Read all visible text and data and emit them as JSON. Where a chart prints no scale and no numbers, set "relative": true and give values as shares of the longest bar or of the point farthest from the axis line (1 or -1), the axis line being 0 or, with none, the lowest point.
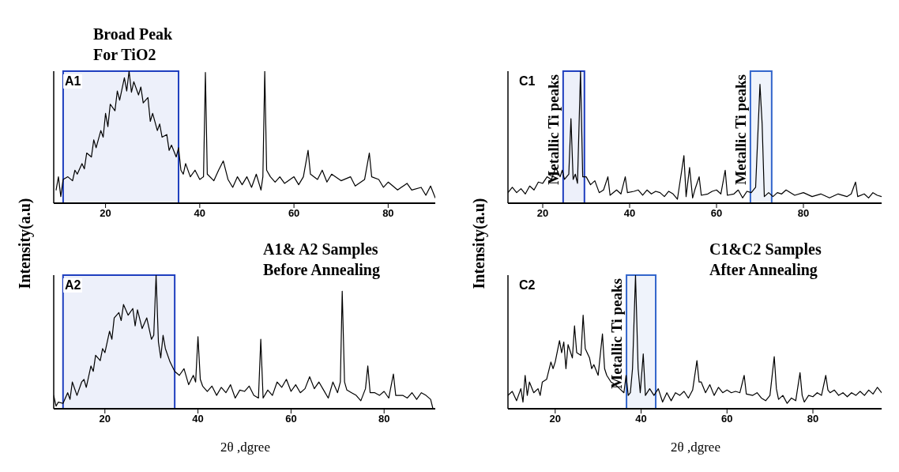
{
  "chart_data": [
    {
      "type": "line",
      "title": "A1",
      "ylabel": "Intensity(a.u)",
      "relative": true,
      "xlim": [
        9,
        90
      ],
      "xticks": [
        20,
        40,
        60,
        80
      ],
      "tick_labels": "x",
      "x": [
        9.5,
        10,
        10.5,
        11,
        12,
        13,
        13.5,
        14,
        15,
        15.5,
        16,
        17,
        17.5,
        18,
        19,
        19.5,
        20,
        20.5,
        21,
        22,
        22.5,
        23,
        24,
        24.5,
        25,
        25.5,
        26,
        27,
        27.5,
        28,
        29,
        29.5,
        30,
        31,
        31.5,
        32,
        33,
        33.5,
        34,
        35,
        35.5,
        36,
        36.5,
        37,
        38,
        39,
        40,
        40.8,
        41.2,
        41.6,
        43,
        44,
        45,
        46,
        47,
        48,
        49,
        50,
        51,
        52,
        53,
        53.4,
        53.8,
        54.2,
        55,
        56,
        57,
        58,
        60,
        61,
        62,
        63,
        63.5,
        65,
        66,
        67,
        68,
        70,
        72,
        73,
        75,
        76,
        76.5,
        78,
        79,
        80,
        82,
        84,
        85,
        87,
        88,
        89,
        90
      ],
      "series": [
        {
          "color": "#000000",
          "values": [
            0.1,
            0.2,
            0.05,
            0.18,
            0.2,
            0.17,
            0.25,
            0.22,
            0.3,
            0.26,
            0.38,
            0.35,
            0.48,
            0.42,
            0.55,
            0.5,
            0.68,
            0.58,
            0.75,
            0.7,
            0.85,
            0.78,
            0.95,
            0.85,
            1.0,
            0.84,
            0.92,
            0.82,
            0.88,
            0.76,
            0.8,
            0.62,
            0.68,
            0.55,
            0.6,
            0.5,
            0.52,
            0.4,
            0.44,
            0.35,
            0.42,
            0.25,
            0.22,
            0.3,
            0.2,
            0.25,
            0.18,
            0.2,
            0.99,
            0.22,
            0.17,
            0.25,
            0.32,
            0.18,
            0.12,
            0.2,
            0.14,
            0.2,
            0.12,
            0.22,
            0.1,
            0.2,
            1.0,
            0.25,
            0.2,
            0.16,
            0.2,
            0.15,
            0.2,
            0.14,
            0.2,
            0.4,
            0.22,
            0.18,
            0.25,
            0.16,
            0.22,
            0.17,
            0.2,
            0.13,
            0.18,
            0.38,
            0.2,
            0.18,
            0.12,
            0.16,
            0.1,
            0.15,
            0.1,
            0.12,
            0.06,
            0.13,
            0.04
          ]
        }
      ],
      "bands": [
        {
          "axis": "x",
          "from": 11,
          "to": 35.5,
          "color": "#1f3fbf"
        }
      ],
      "annotations": [
        "Broad Peak For TiO2"
      ]
    },
    {
      "type": "line",
      "title": "A2",
      "xlabel": "2θ ,dgree",
      "relative": true,
      "xlim": [
        9,
        91
      ],
      "xticks": [
        20,
        40,
        60,
        80
      ],
      "tick_labels": "x",
      "x": [
        9,
        9.5,
        10,
        11,
        12,
        12.5,
        13,
        14,
        15,
        15.5,
        16,
        17,
        17.5,
        18,
        19,
        19.5,
        20,
        21,
        21.5,
        22,
        23,
        23.5,
        24,
        25,
        26,
        26.5,
        27,
        28,
        29,
        29.5,
        30,
        30.5,
        31,
        31.5,
        32,
        32.5,
        33,
        34,
        35,
        36,
        37,
        38,
        39,
        39.5,
        40,
        40.5,
        41,
        42,
        43,
        44,
        45,
        46,
        47,
        48,
        49,
        50,
        51,
        52,
        53,
        53.5,
        54,
        55,
        56,
        57,
        58,
        59,
        60,
        61,
        62,
        63,
        64,
        65,
        66,
        67,
        68,
        69,
        70,
        70.6,
        71,
        71.5,
        72,
        73,
        74,
        75,
        76,
        76.5,
        77,
        78,
        79,
        80,
        81,
        82,
        82.5,
        84,
        85,
        86,
        87,
        88,
        89,
        90,
        90.5
      ],
      "series": [
        {
          "color": "#000000",
          "values": [
            0.1,
            0.02,
            0.05,
            0.04,
            0.12,
            0.07,
            0.2,
            0.1,
            0.2,
            0.22,
            0.16,
            0.32,
            0.28,
            0.4,
            0.36,
            0.45,
            0.42,
            0.58,
            0.52,
            0.68,
            0.72,
            0.66,
            0.78,
            0.7,
            0.75,
            0.62,
            0.74,
            0.6,
            0.68,
            0.6,
            0.52,
            0.55,
            1.0,
            0.5,
            0.38,
            0.55,
            0.45,
            0.35,
            0.28,
            0.25,
            0.3,
            0.18,
            0.25,
            0.2,
            0.54,
            0.22,
            0.17,
            0.13,
            0.17,
            0.1,
            0.16,
            0.12,
            0.18,
            0.08,
            0.14,
            0.13,
            0.17,
            0.1,
            0.08,
            0.52,
            0.08,
            0.14,
            0.1,
            0.2,
            0.16,
            0.22,
            0.13,
            0.18,
            0.12,
            0.15,
            0.24,
            0.15,
            0.2,
            0.14,
            0.08,
            0.2,
            0.12,
            0.2,
            0.88,
            0.2,
            0.14,
            0.12,
            0.1,
            0.06,
            0.15,
            0.32,
            0.12,
            0.12,
            0.1,
            0.13,
            0.08,
            0.26,
            0.1,
            0.1,
            0.08,
            0.12,
            0.07,
            0.12,
            0.1,
            0.07,
            0
          ]
        }
      ],
      "bands": [
        {
          "axis": "x",
          "from": 11,
          "to": 35,
          "color": "#1f3fbf"
        }
      ],
      "annotations": [
        "A1& A2 Samples Before Annealing"
      ]
    },
    {
      "type": "line",
      "title": "C1",
      "ylabel": "Intensity(a.u)",
      "relative": true,
      "xlim": [
        12,
        98
      ],
      "xticks": [
        20,
        40,
        60,
        80
      ],
      "tick_labels": "x",
      "x": [
        12,
        13,
        14,
        15,
        16,
        17,
        18,
        19,
        20,
        21,
        22,
        23,
        24,
        24.5,
        25,
        26,
        26.5,
        27,
        27.5,
        28,
        28.7,
        29.2,
        30,
        31,
        32,
        33,
        34,
        35,
        35.5,
        37,
        38,
        39,
        39.5,
        41,
        42,
        43,
        44,
        45,
        46,
        47,
        48,
        49,
        50,
        51,
        52.5,
        53,
        53.8,
        54.5,
        55,
        56,
        56.5,
        58,
        59,
        60,
        61,
        62,
        62.5,
        64,
        65,
        66,
        67,
        68,
        69,
        70,
        70.5,
        71,
        72,
        73,
        74,
        75,
        76,
        78,
        80,
        82,
        84,
        86,
        88,
        90,
        91,
        92,
        92.5,
        94,
        95,
        96,
        97,
        98
      ],
      "series": [
        {
          "color": "#000000",
          "values": [
            0.08,
            0.12,
            0.08,
            0.11,
            0.07,
            0.13,
            0.1,
            0.16,
            0.15,
            0.2,
            0.18,
            0.27,
            0.2,
            0.25,
            0.18,
            0.22,
            0.64,
            0.18,
            0.22,
            0.15,
            1.0,
            0.2,
            0.2,
            0.14,
            0.17,
            0.08,
            0.1,
            0.2,
            0.06,
            0.1,
            0.07,
            0.2,
            0.08,
            0.09,
            0.1,
            0.06,
            0.1,
            0.07,
            0.09,
            0.08,
            0.05,
            0.09,
            0.07,
            0.03,
            0.36,
            0.05,
            0.27,
            0.04,
            0.1,
            0.2,
            0.06,
            0.07,
            0.09,
            0.1,
            0.07,
            0.25,
            0.06,
            0.07,
            0.1,
            0.04,
            0.09,
            0.08,
            0.12,
            0.9,
            0.6,
            0.05,
            0.08,
            0.05,
            0.08,
            0.07,
            0.1,
            0.06,
            0.08,
            0.05,
            0.07,
            0.04,
            0.07,
            0.05,
            0.07,
            0.16,
            0.05,
            0.07,
            0.04,
            0.08,
            0.06,
            0.05
          ]
        }
      ],
      "bands": [
        {
          "axis": "x",
          "from": 24.7,
          "to": 29.6,
          "color": "#1f3fbf",
          "label": "Metallic Ti peaks"
        },
        {
          "axis": "x",
          "from": 67.8,
          "to": 72.7,
          "color": "#3366cc",
          "label": "Metallic Ti peaks"
        }
      ]
    },
    {
      "type": "line",
      "title": "C2",
      "xlabel": "2θ ,dgree",
      "relative": true,
      "xlim": [
        9,
        96
      ],
      "xticks": [
        20,
        40,
        60,
        80
      ],
      "tick_labels": "x",
      "x": [
        9,
        10,
        11,
        12,
        12.5,
        13,
        13.5,
        14,
        15,
        16,
        16.5,
        17,
        18,
        19,
        19.5,
        20,
        21,
        21.5,
        22,
        22.5,
        23,
        24,
        24.5,
        25,
        26,
        26.5,
        27,
        28,
        28.5,
        29,
        30,
        31,
        31.5,
        32,
        33,
        34,
        35,
        36,
        36.5,
        37,
        37.5,
        38,
        38.7,
        39.3,
        39.8,
        40.5,
        41,
        42,
        43,
        44,
        45,
        46,
        47,
        48,
        49,
        50,
        51,
        52,
        53,
        53.5,
        54,
        55,
        56,
        57,
        58,
        59,
        60,
        61,
        62,
        63,
        64,
        64.5,
        66,
        67,
        68,
        69,
        70,
        71,
        71.5,
        72,
        73,
        74,
        75,
        76,
        77,
        77.5,
        78,
        79,
        80,
        81,
        82,
        83,
        83.5,
        84,
        85,
        86,
        87,
        88,
        89,
        90,
        91,
        92,
        93,
        94,
        95,
        96
      ],
      "series": [
        {
          "color": "#000000",
          "values": [
            0.1,
            0.13,
            0.06,
            0.15,
            0.05,
            0.25,
            0.1,
            0.2,
            0.12,
            0.15,
            0.1,
            0.2,
            0.22,
            0.35,
            0.3,
            0.35,
            0.51,
            0.42,
            0.5,
            0.3,
            0.48,
            0.38,
            0.62,
            0.42,
            0.4,
            0.7,
            0.45,
            0.38,
            0.3,
            0.33,
            0.25,
            0.56,
            0.3,
            0.25,
            0.2,
            0.18,
            0.15,
            0.12,
            0.25,
            0.1,
            0.12,
            0.3,
            1.0,
            0.3,
            0.12,
            0.41,
            0.1,
            0.15,
            0.1,
            0.15,
            0.05,
            0.12,
            0.06,
            0.12,
            0.1,
            0.13,
            0.08,
            0.14,
            0.36,
            0.2,
            0.2,
            0.12,
            0.18,
            0.1,
            0.16,
            0.12,
            0.14,
            0.12,
            0.13,
            0.12,
            0.25,
            0.11,
            0.1,
            0.12,
            0.08,
            0.06,
            0.1,
            0.39,
            0.15,
            0.07,
            0.1,
            0.04,
            0.08,
            0.06,
            0.27,
            0.1,
            0.05,
            0.1,
            0.09,
            0.12,
            0.1,
            0.25,
            0.14,
            0.12,
            0.14,
            0.1,
            0.12,
            0.09,
            0.12,
            0.1,
            0.13,
            0.1,
            0.14,
            0.11,
            0.16,
            0.12
          ]
        }
      ],
      "bands": [
        {
          "axis": "x",
          "from": 36.6,
          "to": 43.4,
          "color": "#3366cc",
          "label": "Metallic Ti peaks"
        }
      ],
      "annotations": [
        "C1&C2 Samples After Annealing"
      ]
    }
  ]
}
